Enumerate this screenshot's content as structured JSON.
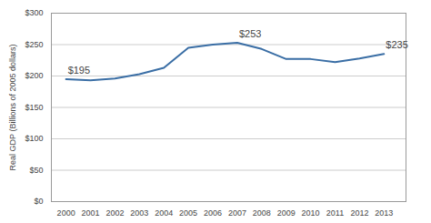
{
  "chart_data": {
    "type": "line",
    "x": [
      2000,
      2001,
      2002,
      2003,
      2004,
      2005,
      2006,
      2007,
      2008,
      2009,
      2010,
      2011,
      2012,
      2013
    ],
    "values": [
      195,
      193,
      196,
      203,
      213,
      245,
      250,
      253,
      243,
      227,
      227,
      222,
      228,
      235
    ],
    "color": "#3A6EA5",
    "ylabel": "Real GDP (Billions of 2005 dollars)",
    "xlim": [
      1999.4,
      2013.9
    ],
    "xticks": [
      2000,
      2001,
      2002,
      2003,
      2004,
      2005,
      2006,
      2007,
      2008,
      2009,
      2010,
      2011,
      2012,
      2013
    ],
    "ylim": [
      0,
      300
    ],
    "yticks": [
      {
        "value": 0,
        "label": "$0"
      },
      {
        "value": 50,
        "label": "$50"
      },
      {
        "value": 100,
        "label": "$100"
      },
      {
        "value": 150,
        "label": "$150"
      },
      {
        "value": 200,
        "label": "$200"
      },
      {
        "value": 250,
        "label": "$250"
      },
      {
        "value": 300,
        "label": "$300"
      }
    ],
    "grid": true,
    "annotations": [
      {
        "x": 2000,
        "y": 195,
        "text": "$195"
      },
      {
        "x": 2007,
        "y": 253,
        "text": "$253"
      },
      {
        "x": 2013,
        "y": 235,
        "text": "$235"
      }
    ]
  }
}
